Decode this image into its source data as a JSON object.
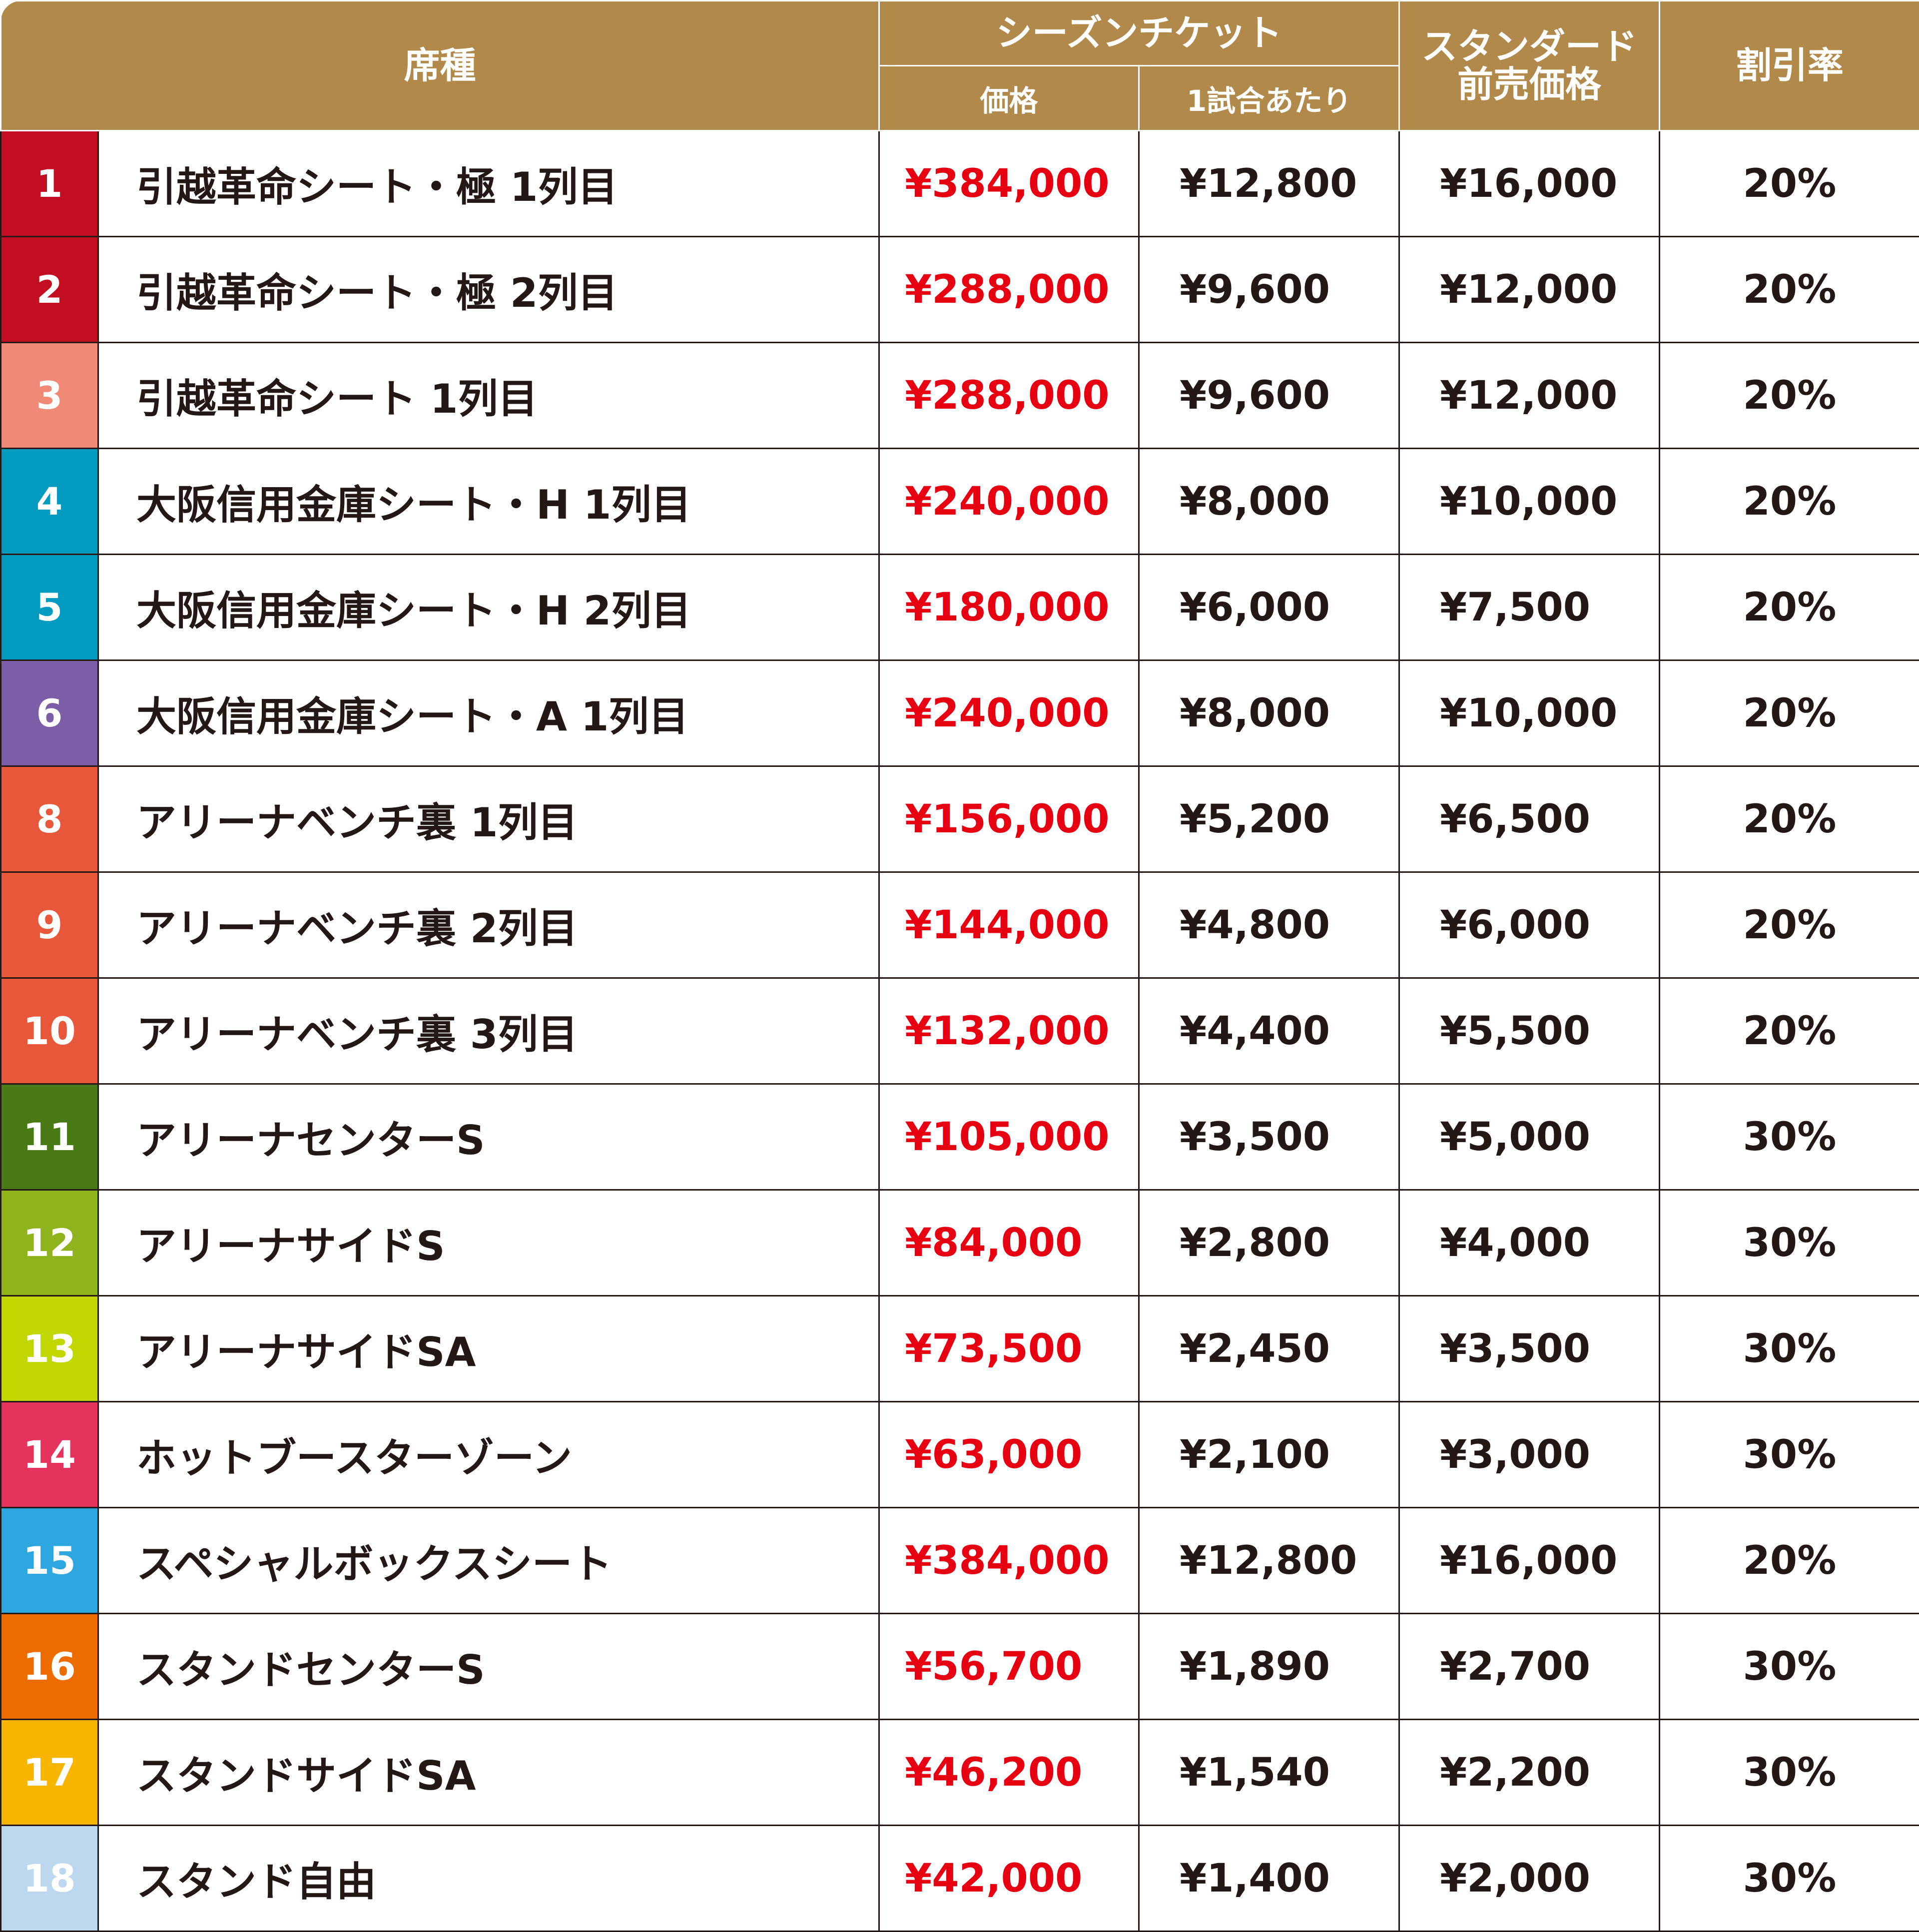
{
  "header": {
    "seat_type": "席種",
    "season_ticket": "シーズンチケット",
    "price": "価格",
    "per_game": "1試合あたり",
    "standard_presale": "スタンダード\n前売価格",
    "discount_rate": "割引率"
  },
  "colors": {
    "header_bg": "#b0894b",
    "season_price_text": "#e60012"
  },
  "rows": [
    {
      "num": "1",
      "color": "#c30d23",
      "name": "引越革命シート・極 1列目",
      "price": "¥384,000",
      "per_game": "¥12,800",
      "standard": "¥16,000",
      "discount": "20%"
    },
    {
      "num": "2",
      "color": "#c30d23",
      "name": "引越革命シート・極 2列目",
      "price": "¥288,000",
      "per_game": "¥9,600",
      "standard": "¥12,000",
      "discount": "20%"
    },
    {
      "num": "3",
      "color": "#f08a76",
      "name": "引越革命シート 1列目",
      "price": "¥288,000",
      "per_game": "¥9,600",
      "standard": "¥12,000",
      "discount": "20%"
    },
    {
      "num": "4",
      "color": "#009bbf",
      "name": "大阪信用金庫シート・H 1列目",
      "price": "¥240,000",
      "per_game": "¥8,000",
      "standard": "¥10,000",
      "discount": "20%"
    },
    {
      "num": "5",
      "color": "#009bbf",
      "name": "大阪信用金庫シート・H 2列目",
      "price": "¥180,000",
      "per_game": "¥6,000",
      "standard": "¥7,500",
      "discount": "20%"
    },
    {
      "num": "6",
      "color": "#7b5ea7",
      "name": "大阪信用金庫シート・A 1列目",
      "price": "¥240,000",
      "per_game": "¥8,000",
      "standard": "¥10,000",
      "discount": "20%"
    },
    {
      "num": "8",
      "color": "#e8573a",
      "name": "アリーナベンチ裏 1列目",
      "price": "¥156,000",
      "per_game": "¥5,200",
      "standard": "¥6,500",
      "discount": "20%"
    },
    {
      "num": "9",
      "color": "#e8573a",
      "name": "アリーナベンチ裏 2列目",
      "price": "¥144,000",
      "per_game": "¥4,800",
      "standard": "¥6,000",
      "discount": "20%"
    },
    {
      "num": "10",
      "color": "#e8573a",
      "name": "アリーナベンチ裏 3列目",
      "price": "¥132,000",
      "per_game": "¥4,400",
      "standard": "¥5,500",
      "discount": "20%"
    },
    {
      "num": "11",
      "color": "#4a7a15",
      "name": "アリーナセンターS",
      "price": "¥105,000",
      "per_game": "¥3,500",
      "standard": "¥5,000",
      "discount": "30%"
    },
    {
      "num": "12",
      "color": "#8fb31d",
      "name": "アリーナサイドS",
      "price": "¥84,000",
      "per_game": "¥2,800",
      "standard": "¥4,000",
      "discount": "30%"
    },
    {
      "num": "13",
      "color": "#c2d600",
      "name": "アリーナサイドSA",
      "price": "¥73,500",
      "per_game": "¥2,450",
      "standard": "¥3,500",
      "discount": "30%"
    },
    {
      "num": "14",
      "color": "#e6335e",
      "name": "ホットブースターゾーン",
      "price": "¥63,000",
      "per_game": "¥2,100",
      "standard": "¥3,000",
      "discount": "30%"
    },
    {
      "num": "15",
      "color": "#2ea7e0",
      "name": "スペシャルボックスシート",
      "price": "¥384,000",
      "per_game": "¥12,800",
      "standard": "¥16,000",
      "discount": "20%"
    },
    {
      "num": "16",
      "color": "#ec6c00",
      "name": "スタンドセンターS",
      "price": "¥56,700",
      "per_game": "¥1,890",
      "standard": "¥2,700",
      "discount": "30%"
    },
    {
      "num": "17",
      "color": "#f8b500",
      "name": "スタンドサイドSA",
      "price": "¥46,200",
      "per_game": "¥1,540",
      "standard": "¥2,200",
      "discount": "30%"
    },
    {
      "num": "18",
      "color": "#bcd7ee",
      "name": "スタンド自由",
      "price": "¥42,000",
      "per_game": "¥1,400",
      "standard": "¥2,000",
      "discount": "30%"
    }
  ]
}
